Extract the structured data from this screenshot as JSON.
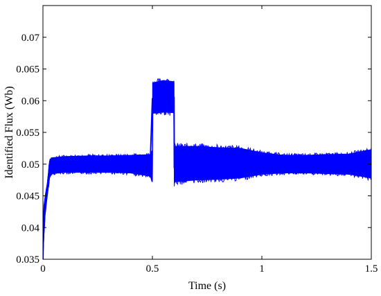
{
  "chart_data": {
    "type": "line",
    "title": "",
    "xlabel": "Time (s)",
    "ylabel": "Identified Flux (Wb)",
    "xlim": [
      0,
      1.5
    ],
    "ylim": [
      0.035,
      0.075
    ],
    "grid": false,
    "legend": "none",
    "x_ticks": [
      0,
      0.5,
      1,
      1.5
    ],
    "x_tick_labels": [
      "0",
      "0.5",
      "1",
      "1.5"
    ],
    "y_ticks": [
      0.035,
      0.04,
      0.045,
      0.05,
      0.055,
      0.06,
      0.065,
      0.07
    ],
    "y_tick_labels": [
      "0.035",
      "0.04",
      "0.045",
      "0.05",
      "0.055",
      "0.06",
      "0.065",
      "0.07"
    ],
    "line_color": "#0000ff",
    "envelope": {
      "x": [
        0,
        0.005,
        0.01,
        0.02,
        0.03,
        0.04,
        0.1,
        0.2,
        0.3,
        0.4,
        0.49,
        0.5,
        0.501,
        0.55,
        0.599,
        0.6,
        0.601,
        0.7,
        0.8,
        0.9,
        1.0,
        1.1,
        1.2,
        1.3,
        1.4,
        1.5
      ],
      "upper": [
        0.035,
        0.043,
        0.045,
        0.047,
        0.0505,
        0.051,
        0.0512,
        0.0513,
        0.0513,
        0.0514,
        0.0515,
        0.0522,
        0.0628,
        0.0632,
        0.063,
        0.053,
        0.0528,
        0.0528,
        0.0526,
        0.0525,
        0.0518,
        0.0514,
        0.0514,
        0.0515,
        0.0516,
        0.0523
      ],
      "lower": [
        0.035,
        0.039,
        0.042,
        0.045,
        0.0478,
        0.0485,
        0.0487,
        0.0487,
        0.0487,
        0.0486,
        0.0481,
        0.0472,
        0.058,
        0.0582,
        0.0581,
        0.0465,
        0.0472,
        0.0475,
        0.0476,
        0.0478,
        0.0484,
        0.0486,
        0.0486,
        0.0485,
        0.0484,
        0.0478
      ]
    },
    "series": [
      {
        "x": [
          0,
          0.003,
          0.006,
          0.01,
          0.015,
          0.02,
          0.025,
          0.03,
          0.035,
          0.04,
          0.1,
          0.2,
          0.3,
          0.4,
          0.49,
          0.5,
          0.55,
          0.599,
          0.6,
          0.7,
          0.8,
          0.9,
          1.0,
          1.1,
          1.2,
          1.3,
          1.4,
          1.5
        ],
        "values": [
          0.035,
          0.041,
          0.0435,
          0.0445,
          0.0455,
          0.046,
          0.0465,
          0.049,
          0.0498,
          0.05,
          0.05,
          0.05,
          0.05,
          0.05,
          0.05,
          0.0603,
          0.0605,
          0.0605,
          0.0495,
          0.0495,
          0.0495,
          0.05,
          0.05,
          0.05,
          0.05,
          0.05,
          0.05,
          0.05
        ]
      }
    ]
  }
}
